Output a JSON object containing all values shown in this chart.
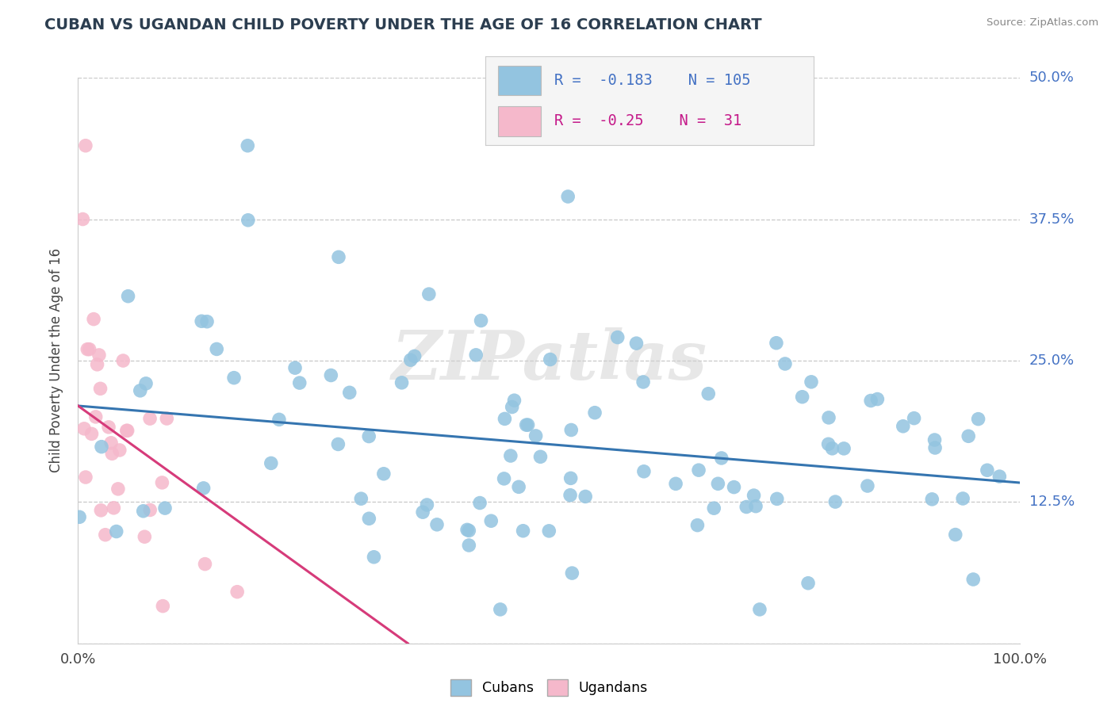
{
  "title": "CUBAN VS UGANDAN CHILD POVERTY UNDER THE AGE OF 16 CORRELATION CHART",
  "source": "Source: ZipAtlas.com",
  "ylabel": "Child Poverty Under the Age of 16",
  "xlim": [
    0,
    1.0
  ],
  "ylim": [
    0,
    0.5
  ],
  "xticks": [
    0.0,
    1.0
  ],
  "xtick_labels": [
    "0.0%",
    "100.0%"
  ],
  "yticks": [
    0.0,
    0.125,
    0.25,
    0.375,
    0.5
  ],
  "ytick_labels": [
    "",
    "12.5%",
    "25.0%",
    "37.5%",
    "50.0%"
  ],
  "cuban_color": "#93c4e0",
  "ugandan_color": "#f5b8cb",
  "cuban_line_color": "#3575b0",
  "ugandan_line_color": "#d63b7a",
  "cuban_R": -0.183,
  "cuban_N": 105,
  "ugandan_R": -0.25,
  "ugandan_N": 31,
  "background_color": "#ffffff",
  "grid_color": "#c8c8c8",
  "watermark": "ZIPatlas",
  "legend_labels": [
    "Cubans",
    "Ugandans"
  ],
  "title_fontsize": 14,
  "axis_label_fontsize": 12,
  "tick_fontsize": 13,
  "cuban_line_intercept": 0.21,
  "cuban_line_slope": -0.068,
  "ugandan_line_intercept": 0.21,
  "ugandan_line_slope": -0.6
}
